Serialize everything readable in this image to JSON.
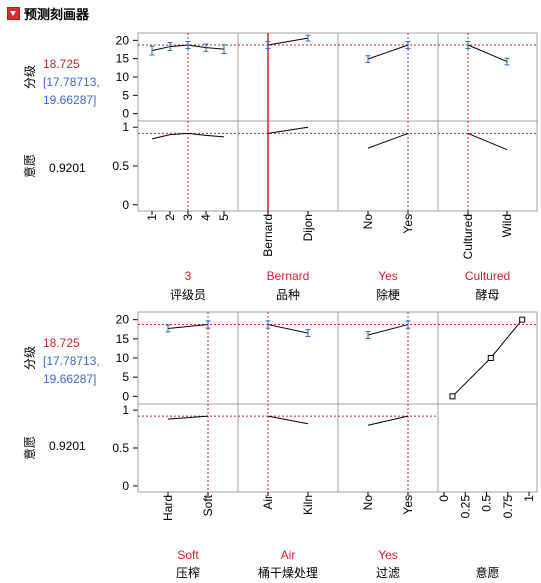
{
  "outline": {
    "title": "预测刻画器"
  },
  "section_top": {
    "response": {
      "label": "分级",
      "value": "18.725",
      "ci_line1": "[17.78713,",
      "ci_line2": "19.66287]"
    },
    "desirability": {
      "label": "意愿",
      "value": "0.9201"
    }
  },
  "section_bottom": {
    "response": {
      "label": "分级",
      "value": "18.725",
      "ci_line1": "[17.78713,",
      "ci_line2": "19.66287]"
    },
    "desirability": {
      "label": "意愿",
      "value": "0.9201"
    }
  },
  "colors": {
    "current_value": "#d0202c",
    "ci_text": "#3a6ad8",
    "curve": "#000000",
    "error_bar": "#2a6ac0",
    "grid": "#a0a0a0"
  },
  "chart_data": [
    {
      "type": "line",
      "title": "预测刻画器 (上部)",
      "response_axis": {
        "label": "分级",
        "ticks": [
          0,
          5,
          10,
          15,
          20
        ],
        "range": [
          -2,
          22
        ]
      },
      "desirability_axis": {
        "label": "意愿",
        "ticks": [
          0,
          0.5,
          1
        ],
        "range": [
          -0.08,
          1.08
        ]
      },
      "current_response": 18.725,
      "current_desirability": 0.9201,
      "panels": [
        {
          "factor": "评级员",
          "current": "3",
          "categories": [
            "1",
            "2",
            "3",
            "4",
            "5"
          ],
          "response": [
            17.2,
            18.3,
            18.725,
            18.0,
            17.6
          ],
          "error": [
            1.2,
            1.1,
            0.94,
            1.0,
            1.2
          ],
          "desirability": [
            0.85,
            0.905,
            0.92,
            0.895,
            0.875
          ]
        },
        {
          "factor": "品种",
          "current": "Bernard",
          "categories": [
            "Bernard",
            "Dijon"
          ],
          "response": [
            18.725,
            20.6
          ],
          "error": [
            0.94,
            0.8
          ],
          "desirability": [
            0.92,
            1.0
          ]
        },
        {
          "factor": "除梗",
          "current": "Yes",
          "categories": [
            "No",
            "Yes"
          ],
          "response": [
            14.9,
            18.725
          ],
          "error": [
            0.9,
            0.94
          ],
          "desirability": [
            0.73,
            0.92
          ]
        },
        {
          "factor": "酵母",
          "current": "Cultured",
          "categories": [
            "Cultured",
            "Wild"
          ],
          "response": [
            18.725,
            14.2
          ],
          "error": [
            0.94,
            0.9
          ],
          "desirability": [
            0.92,
            0.71
          ]
        }
      ]
    },
    {
      "type": "line",
      "title": "预测刻画器 (下部)",
      "response_axis": {
        "label": "分级",
        "ticks": [
          0,
          5,
          10,
          15,
          20
        ],
        "range": [
          -2,
          22
        ]
      },
      "desirability_axis": {
        "label": "意愿",
        "ticks": [
          0,
          0.5,
          1
        ],
        "range": [
          -0.08,
          1.08
        ]
      },
      "current_response": 18.725,
      "current_desirability": 0.9201,
      "panels": [
        {
          "factor": "压榨",
          "current": "Soft",
          "categories": [
            "Hard",
            "Soft"
          ],
          "response": [
            17.7,
            18.725
          ],
          "error": [
            0.9,
            0.94
          ],
          "desirability": [
            0.88,
            0.92
          ]
        },
        {
          "factor": "桶干燥处理",
          "current": "Air",
          "categories": [
            "Air",
            "Kiln"
          ],
          "response": [
            18.725,
            16.5
          ],
          "error": [
            0.94,
            0.9
          ],
          "desirability": [
            0.92,
            0.82
          ]
        },
        {
          "factor": "过滤",
          "current": "Yes",
          "categories": [
            "No",
            "Yes"
          ],
          "response": [
            16.0,
            18.725
          ],
          "error": [
            0.9,
            0.94
          ],
          "desirability": [
            0.8,
            0.92
          ]
        },
        {
          "factor": "意愿",
          "kind": "desirability-function",
          "ticks": [
            "0",
            "0.25",
            "0.5",
            "0.75",
            "1"
          ],
          "points": [
            [
              0.1,
              0
            ],
            [
              0.55,
              10
            ],
            [
              0.92,
              20
            ]
          ]
        }
      ]
    }
  ]
}
